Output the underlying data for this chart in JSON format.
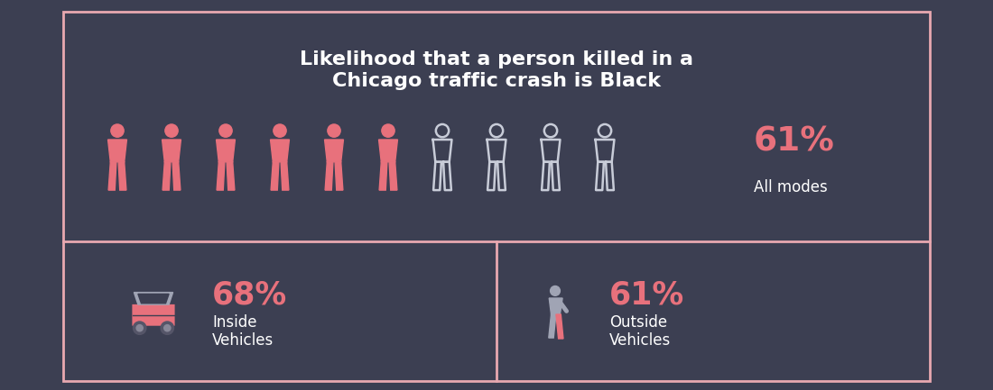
{
  "bg_color": "#3c3f52",
  "box_border_color": "#e8a8b0",
  "title_text": "Likelihood that a person killed in a\nChicago traffic crash is Black",
  "title_color": "#ffffff",
  "salmon_color": "#e8717c",
  "outline_color": "#c8ccd8",
  "stat_color": "#e8717c",
  "text_color": "#ffffff",
  "all_modes_pct": "61%",
  "all_modes_label": "All modes",
  "inside_pct": "68%",
  "inside_label": "Inside\nVehicles",
  "outside_pct": "61%",
  "outside_label": "Outside\nVehicles",
  "num_filled": 6,
  "num_total": 10,
  "grey_color": "#a0a4b4",
  "wheel_color": "#555568",
  "wheel_inner": "#888898"
}
